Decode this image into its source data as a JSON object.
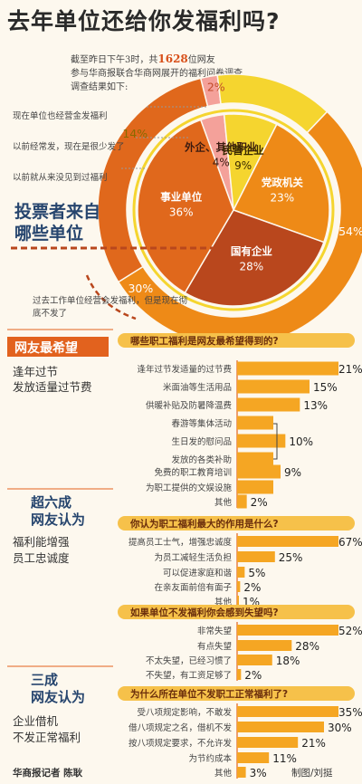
{
  "title": "去年单位还给你发福利吗?",
  "intro": {
    "line1_pre": "截至昨日下午3时，共",
    "count": "1628",
    "line1_post": "位网友",
    "line2": "参与华商报联合华商网展开的福利问卷调查",
    "line3": "调查结果如下:"
  },
  "voters_title_line1": "投票者来自",
  "voters_title_line2": "哪些单位",
  "sections": {
    "s1": {
      "tag": "网友最希望",
      "desc": "逢年过节\n发放适量过节费"
    },
    "s2": {
      "big1": "超六成",
      "big2": "网友认为",
      "desc": "福利能增强\n员工忠诚度"
    },
    "s3": {
      "big1": "三成",
      "big2": "网友认为",
      "desc": "企业借机\n不发正常福利"
    }
  },
  "credit_left": "华商报记者 陈耿",
  "credit_right": "制图/刘挺",
  "colors": {
    "orange": "#ee8a17",
    "dark_orange": "#e0681c",
    "red_brown": "#b9471d",
    "yellow": "#f5d52f",
    "pink": "#f4a19a",
    "bar": "#f5a623",
    "tag": "#e2621e",
    "navy": "#26456e"
  },
  "chart_data": [
    {
      "type": "pie",
      "title": "",
      "note": "outer ring: welfare status of respondent's workplace last year",
      "slices": [
        {
          "label": "现在单位也经营金发福利",
          "value": 2,
          "value_label": "2%"
        },
        {
          "label": "以前经常发，现在是很少发了",
          "value": 14,
          "value_label": "14%"
        },
        {
          "label": "以前就从来没见到过福利",
          "value": 54,
          "value_label": "54%"
        },
        {
          "label": "过去工作单位经营会发福利，但是现在彻底不发了",
          "value": 30,
          "value_label": "30%"
        }
      ]
    },
    {
      "type": "pie",
      "title": "投票者来自哪些单位",
      "slices": [
        {
          "label": "外企、其他职业",
          "value": 4,
          "value_label": "4%"
        },
        {
          "label": "民营企业",
          "value": 9,
          "value_label": "9%"
        },
        {
          "label": "党政机关",
          "value": 23,
          "value_label": "23%"
        },
        {
          "label": "国有企业",
          "value": 28,
          "value_label": "28%"
        },
        {
          "label": "事业单位",
          "value": 36,
          "value_label": "36%"
        }
      ]
    },
    {
      "type": "bar",
      "title": "哪些职工福利是网友最希望得到的?",
      "rows": [
        {
          "label": "逢年过节发适量的过节费",
          "value": 21,
          "value_label": "21%"
        },
        {
          "label": "米面油等生活用品",
          "value": 15,
          "value_label": "15%"
        },
        {
          "label": "供暖补贴及防暑降温费",
          "value": 13,
          "value_label": "13%"
        },
        {
          "label": "春游等集体活动",
          "value": null,
          "value_label": ""
        },
        {
          "label": "生日发的慰问品",
          "value": 10,
          "value_label": "10%"
        },
        {
          "label": "发放的各类补助",
          "value": null,
          "value_label": ""
        },
        {
          "label": "免费的职工教育培训",
          "value": 9,
          "value_label": "9%"
        },
        {
          "label": "为职工提供的文娱设施",
          "value": null,
          "value_label": ""
        },
        {
          "label": "其他",
          "value": 2,
          "value_label": "2%"
        }
      ]
    },
    {
      "type": "bar",
      "title": "你认为职工福利最大的作用是什么?",
      "rows": [
        {
          "label": "提高员工士气，增强忠诚度",
          "value": 67,
          "value_label": "67%"
        },
        {
          "label": "为员工减轻生活负担",
          "value": 25,
          "value_label": "25%"
        },
        {
          "label": "可以促进家庭和谐",
          "value": 5,
          "value_label": "5%"
        },
        {
          "label": "在亲友面前倍有面子",
          "value": 2,
          "value_label": "2%"
        },
        {
          "label": "其他",
          "value": 1,
          "value_label": "1%"
        }
      ]
    },
    {
      "type": "bar",
      "title": "如果单位不发福利你会感到失望吗?",
      "rows": [
        {
          "label": "非常失望",
          "value": 52,
          "value_label": "52%"
        },
        {
          "label": "有点失望",
          "value": 28,
          "value_label": "28%"
        },
        {
          "label": "不太失望，已经习惯了",
          "value": 18,
          "value_label": "18%"
        },
        {
          "label": "不失望，有工资足够了",
          "value": 2,
          "value_label": "2%"
        }
      ]
    },
    {
      "type": "bar",
      "title": "为什么所在单位不发职工正常福利了?",
      "rows": [
        {
          "label": "受八项规定影响，不敢发",
          "value": 35,
          "value_label": "35%"
        },
        {
          "label": "借八项规定之名，借机不发",
          "value": 30,
          "value_label": "30%"
        },
        {
          "label": "按八项规定要求，不允许发",
          "value": 21,
          "value_label": "21%"
        },
        {
          "label": "为节约成本",
          "value": 11,
          "value_label": "11%"
        },
        {
          "label": "其他",
          "value": 3,
          "value_label": "3%"
        }
      ]
    }
  ]
}
